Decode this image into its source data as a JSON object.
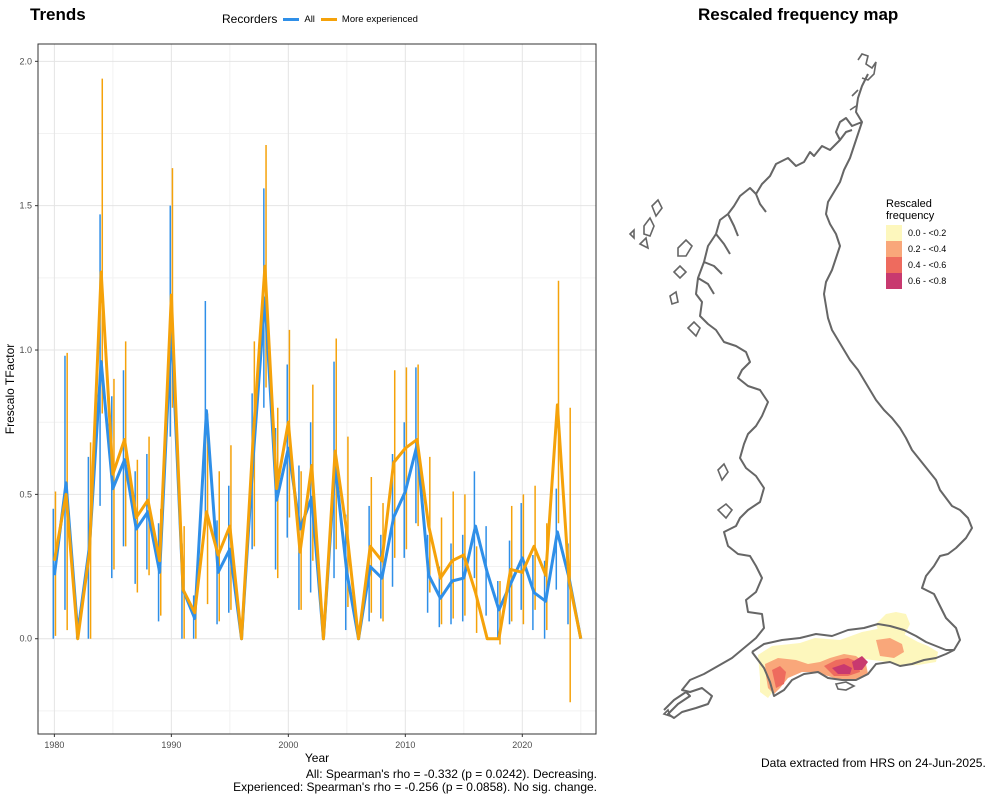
{
  "trends_title": "Trends",
  "map_title": "Rescaled frequency map",
  "legend": {
    "title": "Recorders",
    "items": [
      {
        "label": "All",
        "color": "#2f8fe8"
      },
      {
        "label": "More experienced",
        "color": "#f5a20a"
      }
    ]
  },
  "stats": {
    "line1": "All: Spearman's rho = -0.332 (p = 0.0242). Decreasing.",
    "line2": "Experienced: Spearman's rho = -0.256 (p = 0.0858). No sig. change."
  },
  "map_legend": {
    "title_line1": "Rescaled",
    "title_line2": "frequency",
    "items": [
      {
        "label": "0.0 - <0.2",
        "color": "#fdf7bd"
      },
      {
        "label": "0.2 - <0.4",
        "color": "#f9a77a"
      },
      {
        "label": "0.4 - <0.6",
        "color": "#ee6b5e"
      },
      {
        "label": "0.6 - <0.8",
        "color": "#c8396f"
      }
    ]
  },
  "footer": "Data extracted from HRS on 24-Jun-2025.",
  "chart_data": {
    "type": "line",
    "xlabel": "Year",
    "ylabel": "Frescalo TFactor",
    "xlim": [
      1978.6,
      2026.3
    ],
    "ylim": [
      -0.33,
      2.06
    ],
    "xticks": [
      1980,
      1990,
      2000,
      2010,
      2020
    ],
    "yticks": [
      0.0,
      0.5,
      1.0,
      1.5,
      2.0
    ],
    "ytick_labels": [
      "0.0",
      "0.5",
      "1.0",
      "1.5",
      "2.0"
    ],
    "grid": true,
    "x": [
      1980,
      1981,
      1982,
      1983,
      1984,
      1985,
      1986,
      1987,
      1988,
      1989,
      1990,
      1991,
      1992,
      1993,
      1994,
      1995,
      1996,
      1997,
      1998,
      1999,
      2000,
      2001,
      2002,
      2003,
      2004,
      2005,
      2006,
      2007,
      2008,
      2009,
      2010,
      2011,
      2012,
      2013,
      2014,
      2015,
      2016,
      2017,
      2018,
      2019,
      2020,
      2021,
      2022,
      2023,
      2024,
      2025
    ],
    "series": [
      {
        "name": "All",
        "color": "#2f8fe8",
        "values": [
          0.22,
          0.54,
          0.02,
          0.32,
          0.96,
          0.52,
          0.62,
          0.38,
          0.44,
          0.23,
          1.08,
          0.17,
          0.07,
          0.79,
          0.23,
          0.31,
          0.0,
          0.63,
          1.18,
          0.48,
          0.66,
          0.38,
          0.49,
          0.0,
          0.6,
          0.23,
          0.0,
          0.25,
          0.21,
          0.42,
          0.51,
          0.67,
          0.22,
          0.14,
          0.2,
          0.21,
          0.39,
          0.23,
          0.1,
          0.19,
          0.28,
          0.16,
          0.13,
          0.37,
          0.21,
          0.0
        ],
        "lower": [
          0.0,
          0.1,
          0.0,
          0.0,
          0.46,
          0.21,
          0.32,
          0.19,
          0.24,
          0.06,
          0.7,
          0.0,
          0.0,
          0.42,
          0.05,
          0.09,
          0.0,
          0.31,
          0.8,
          0.24,
          0.35,
          0.1,
          0.16,
          0.0,
          0.21,
          0.03,
          0.0,
          0.06,
          0.07,
          0.18,
          0.28,
          0.4,
          0.09,
          0.04,
          0.05,
          0.06,
          0.21,
          0.08,
          0.0,
          0.05,
          0.1,
          0.03,
          0.0,
          0.17,
          0.05,
          0.0
        ],
        "upper": [
          0.45,
          0.98,
          0.1,
          0.63,
          1.47,
          0.84,
          0.93,
          0.58,
          0.64,
          0.4,
          1.5,
          0.33,
          0.15,
          1.17,
          0.41,
          0.53,
          0.0,
          0.85,
          1.56,
          0.73,
          0.95,
          0.6,
          0.75,
          0.0,
          0.96,
          0.43,
          0.0,
          0.46,
          0.36,
          0.64,
          0.75,
          0.94,
          0.36,
          0.25,
          0.33,
          0.36,
          0.58,
          0.39,
          0.2,
          0.34,
          0.47,
          0.29,
          0.27,
          0.52,
          0.33,
          0.0
        ]
      },
      {
        "name": "More experienced",
        "color": "#f5a20a",
        "values": [
          0.27,
          0.5,
          0.0,
          0.3,
          1.27,
          0.57,
          0.69,
          0.42,
          0.48,
          0.27,
          1.19,
          0.17,
          0.09,
          0.44,
          0.29,
          0.39,
          0.0,
          0.7,
          1.29,
          0.52,
          0.75,
          0.3,
          0.6,
          0.0,
          0.65,
          0.37,
          0.0,
          0.32,
          0.27,
          0.61,
          0.66,
          0.69,
          0.39,
          0.21,
          0.27,
          0.29,
          0.16,
          0.0,
          0.0,
          0.24,
          0.23,
          0.32,
          0.22,
          0.81,
          0.2,
          0.0
        ],
        "lower": [
          0.01,
          0.03,
          0.0,
          0.0,
          0.78,
          0.24,
          0.32,
          0.16,
          0.22,
          0.08,
          0.8,
          0.0,
          0.0,
          0.12,
          0.06,
          0.1,
          0.0,
          0.32,
          0.87,
          0.21,
          0.42,
          0.1,
          0.27,
          0.0,
          0.31,
          0.11,
          0.0,
          0.09,
          0.06,
          0.28,
          0.31,
          0.39,
          0.16,
          0.05,
          0.07,
          0.08,
          0.02,
          0.0,
          -0.02,
          0.06,
          0.05,
          0.1,
          0.03,
          0.4,
          -0.22,
          0.0
        ],
        "upper": [
          0.51,
          0.99,
          0.0,
          0.68,
          1.94,
          0.9,
          1.03,
          0.62,
          0.7,
          0.45,
          1.63,
          0.39,
          0.18,
          0.78,
          0.58,
          0.67,
          0.0,
          1.03,
          1.71,
          0.8,
          1.07,
          0.58,
          0.88,
          0.0,
          1.04,
          0.7,
          0.0,
          0.56,
          0.47,
          0.93,
          0.94,
          0.95,
          0.63,
          0.42,
          0.51,
          0.5,
          0.32,
          0.0,
          0.2,
          0.46,
          0.5,
          0.53,
          0.4,
          1.24,
          0.8,
          0.0
        ]
      }
    ]
  }
}
